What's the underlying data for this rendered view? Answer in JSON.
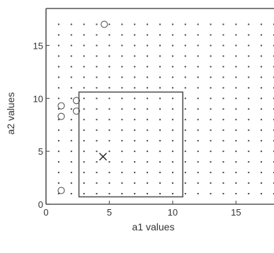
{
  "chart_data": {
    "type": "scatter",
    "xlabel": "a1 values",
    "ylabel": "a2 values",
    "xlim": [
      0,
      18
    ],
    "ylim": [
      0,
      18.5
    ],
    "xticks": [
      0,
      5,
      10,
      15
    ],
    "yticks": [
      0,
      5,
      10,
      15
    ],
    "xtick_labels": [
      "0",
      "5",
      "10",
      "15"
    ],
    "ytick_labels": [
      "0",
      "5",
      "10",
      "15"
    ],
    "grid_dots": {
      "x_from": 1,
      "x_to": 18,
      "y_from": 1,
      "y_to": 17,
      "step": 1
    },
    "rectangle": {
      "x": [
        2.6,
        10.8
      ],
      "y": [
        0.7,
        10.6
      ]
    },
    "x_marker": {
      "x": 4.5,
      "y": 4.5,
      "symbol": "x"
    },
    "circled_points": [
      {
        "x": 4.6,
        "y": 17.0
      },
      {
        "x": 1.2,
        "y": 9.3
      },
      {
        "x": 1.2,
        "y": 8.3
      },
      {
        "x": 2.4,
        "y": 9.8
      },
      {
        "x": 2.4,
        "y": 8.8
      },
      {
        "x": 1.2,
        "y": 1.3
      }
    ],
    "colors": {
      "frame": "#555555",
      "dots": "#444444",
      "text": "#333333"
    }
  }
}
